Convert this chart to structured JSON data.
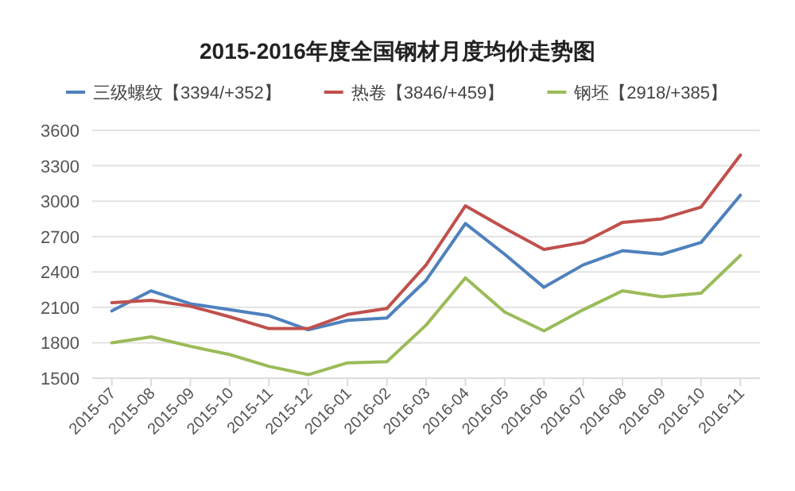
{
  "chart_data": {
    "type": "line",
    "title": "2015-2016年度全国钢材月度均价走势图",
    "categories": [
      "2015-07",
      "2015-08",
      "2015-09",
      "2015-10",
      "2015-11",
      "2015-12",
      "2016-01",
      "2016-02",
      "2016-03",
      "2016-04",
      "2016-05",
      "2016-06",
      "2016-07",
      "2016-08",
      "2016-09",
      "2016-10",
      "2016-11"
    ],
    "series": [
      {
        "name": "三级螺纹【3394/+352】",
        "color": "#4e81bd",
        "values": [
          2070,
          2240,
          2130,
          2080,
          2030,
          1910,
          1990,
          2010,
          2330,
          2810,
          2550,
          2270,
          2460,
          2580,
          2550,
          2650,
          3050
        ]
      },
      {
        "name": "热卷【3846/+459】",
        "color": "#c0504d",
        "values": [
          2140,
          2160,
          2110,
          2020,
          1920,
          1920,
          2040,
          2090,
          2460,
          2960,
          2770,
          2590,
          2650,
          2820,
          2850,
          2950,
          3390
        ]
      },
      {
        "name": "钢坯【2918/+385】",
        "color": "#9bbb59",
        "values": [
          1800,
          1850,
          1770,
          1700,
          1600,
          1530,
          1630,
          1640,
          1950,
          2350,
          2060,
          1900,
          2080,
          2240,
          2190,
          2220,
          2540
        ]
      }
    ],
    "ylim": [
      1500,
      3600
    ],
    "yticks": [
      1500,
      1800,
      2100,
      2400,
      2700,
      3000,
      3300,
      3600
    ],
    "grid": "y",
    "legend": "top",
    "marker": "none",
    "line_style": "solid"
  }
}
